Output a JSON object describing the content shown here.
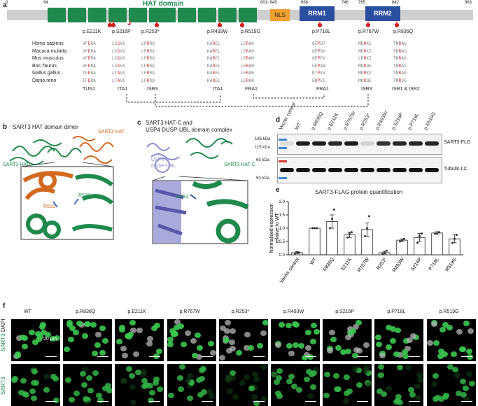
{
  "panel_a": {
    "label": "a",
    "ticks": [
      "0",
      "94",
      "601- 649",
      "668",
      "746",
      "765",
      "842",
      "963"
    ],
    "hat_label": "HAT domain",
    "nls_label": "NLS",
    "rrm1_label": "RRM1",
    "rrm2_label": "RRM2",
    "mutations": [
      "p.E211K",
      "p.S216P",
      "p.R253*",
      "p.R493W",
      "p.R519G",
      "p.P718L",
      "p.R767W",
      "p.R836Q"
    ],
    "species": [
      "Homo sapiens",
      "Macaca mulatta",
      "Mus musculus",
      "Bos Taurus",
      "Gallus gallus",
      "Danio rerio"
    ],
    "alignment": [
      [
        "VFERA",
        "LSSVG",
        "LFRRQ",
        "KAREL",
        "LERAH",
        "QEPD7",
        "MDRKS",
        "TNRAG"
      ],
      [
        "VFERA",
        "LSSVG",
        "LFRRQ",
        "KAREL",
        "LERAH",
        "QEPDV",
        "MDRKS",
        "TNRAG"
      ],
      [
        "VFERA",
        "LSSVG",
        "LFRRQ",
        "KAREL",
        "LERAH",
        "QEPEV",
        "LDRKI",
        "TNRAG"
      ],
      [
        "VFERA",
        "LSSVG",
        "LFRRQ",
        "KAREL",
        "LERAH",
        "GEPAA",
        "MDRQS",
        "TNRAG"
      ],
      [
        "IFERA",
        "LTAVG",
        "LFRRQ",
        "KAREL",
        "LERAH",
        "DTPEV",
        "MDRKV",
        "TNRAG"
      ],
      [
        "IFERA",
        "LTAVG",
        "LFRRQ",
        "KAREL",
        "LERAH",
        "EDPEG",
        "MDRQE",
        "TNRSG"
      ]
    ],
    "classes": [
      "TUN1",
      "ITA1",
      "ISR3",
      "ITA1",
      "FRA1",
      "FRA1",
      "ISR3",
      "ISR1 & ISR2"
    ]
  },
  "panel_b": {
    "label": "b",
    "title": "SART3 HAT domain dimer",
    "hat_orange": "SART3 HAT",
    "hat_green": "SART3 HAT",
    "res_left": "R519",
    "res_right": "R519"
  },
  "panel_c": {
    "label": "c",
    "title_1": "SART3 HAT-C and",
    "title_2": "USP4 DUSP-UBL domain complex",
    "usp4_1": "USP4",
    "usp4_2": "DUSP-UBL",
    "hatc": "SART3 HAT-C",
    "res": "R493"
  },
  "panel_d": {
    "label": "d",
    "lanes": [
      "Vector control",
      "WT",
      "p.R836Q",
      "p.E211K",
      "p.R767W",
      "p.R253*",
      "p.R493W",
      "p.S216P",
      "p.P718L",
      "p.R519G"
    ],
    "markers": [
      "185 kDa",
      "115 kDa",
      "65 kDa",
      "50 kDa"
    ],
    "band_top": "SART3-FLG",
    "band_bottom": "Tubulin LC"
  },
  "panel_e": {
    "label": "e",
    "title": "SART3-FLAG protein quantification"
  },
  "chart_data": {
    "type": "bar",
    "title": "SART3-FLAG protein quantification",
    "ylabel": "Normalised expression relative to WT",
    "xlabel": "",
    "categories": [
      "Vector control",
      "WT",
      "R836Q",
      "E211K",
      "R767W",
      "R253*",
      "R493W",
      "S216P",
      "P718L",
      "R519G"
    ],
    "values": [
      0.08,
      1.0,
      1.25,
      0.75,
      0.95,
      0.08,
      0.55,
      0.65,
      0.82,
      0.6
    ],
    "errors": [
      0.04,
      0.0,
      0.25,
      0.1,
      0.25,
      0.05,
      0.05,
      0.15,
      0.05,
      0.15
    ],
    "points": [
      [
        0.05,
        0.1,
        0.08
      ],
      [
        1.0,
        1.0,
        1.0
      ],
      [
        1.0,
        1.35,
        1.7
      ],
      [
        0.65,
        0.8,
        0.85
      ],
      [
        0.7,
        1.0,
        1.45
      ],
      [
        0.03,
        0.08,
        0.15
      ],
      [
        0.5,
        0.55,
        0.6
      ],
      [
        0.45,
        0.7,
        0.8
      ],
      [
        0.8,
        0.8,
        0.85
      ],
      [
        0.45,
        0.6,
        0.75
      ]
    ],
    "yticks": [
      "0.0",
      "0.5",
      "1.0",
      "1.5",
      "2.0"
    ],
    "ylim": [
      0,
      2.0
    ]
  },
  "panel_f": {
    "label": "f",
    "columns": [
      "WT",
      "p.R836Q",
      "p.E211K",
      "p.R767W",
      "p.R253*",
      "p.R493W",
      "p.S216P",
      "p.P718L",
      "p.R519G"
    ],
    "row1_label_a": "DAPI",
    "row1_label_b": "SART3",
    "row2_label": "SART3",
    "scale": "20 μm"
  },
  "colors": {
    "hat": "#1e8a4d",
    "nls": "#f0a030",
    "rrm": "#2a4fa0",
    "mut": "#d22222",
    "orange": "#d2691e",
    "lavender": "#8c8cd0"
  }
}
